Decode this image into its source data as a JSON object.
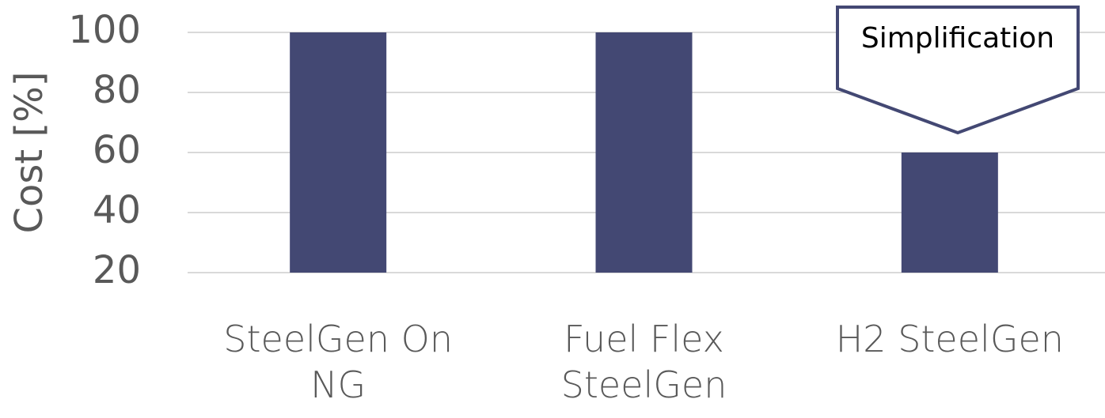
{
  "chart_data": {
    "type": "bar",
    "y_label": "Cost [%]",
    "categories": [
      "SteelGen On NG",
      "Fuel Flex SteelGen",
      "H2 SteelGen"
    ],
    "values": [
      100,
      100,
      60
    ],
    "color": "#434873",
    "ylim": [
      20,
      100
    ],
    "yticks": [
      20,
      40,
      60,
      80,
      100
    ],
    "grid": true,
    "annotation": "Simplification"
  }
}
